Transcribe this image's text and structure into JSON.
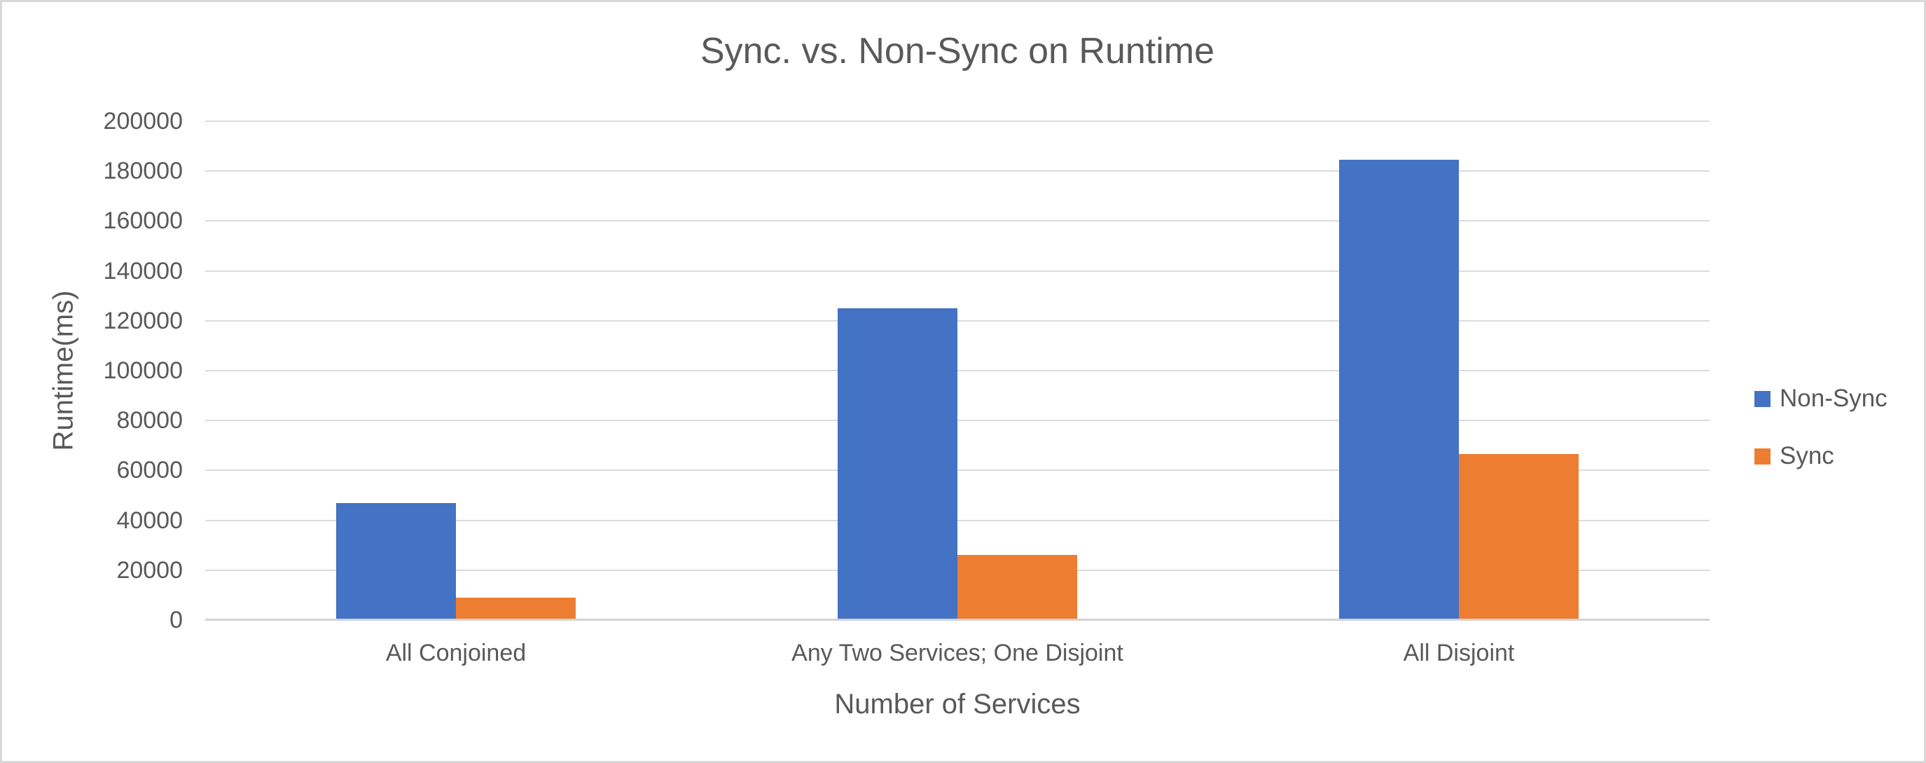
{
  "title": "Sync. vs. Non-Sync on Runtime",
  "chart_data": {
    "type": "bar",
    "title": "Sync. vs. Non-Sync on Runtime",
    "categories": [
      "All Conjoined",
      "Any Two Services; One Disjoint",
      "All Disjoint"
    ],
    "series": [
      {
        "name": "Non-Sync",
        "color": "#4472C4",
        "values": [
          47000,
          125000,
          184500
        ]
      },
      {
        "name": "Sync",
        "color": "#ED7D31",
        "values": [
          9000,
          26000,
          66500
        ]
      }
    ],
    "xlabel": "Number of Services",
    "ylabel": "Runtime(ms)",
    "ylim": [
      0,
      200000
    ],
    "yticks": [
      0,
      20000,
      40000,
      60000,
      80000,
      100000,
      120000,
      140000,
      160000,
      180000,
      200000
    ],
    "grid": true,
    "legend_position": "right",
    "colors": {
      "text": "#595959",
      "gridline": "#DBDBDB",
      "axis_line": "#D3D3D3",
      "background": "#FFFFFF"
    }
  }
}
